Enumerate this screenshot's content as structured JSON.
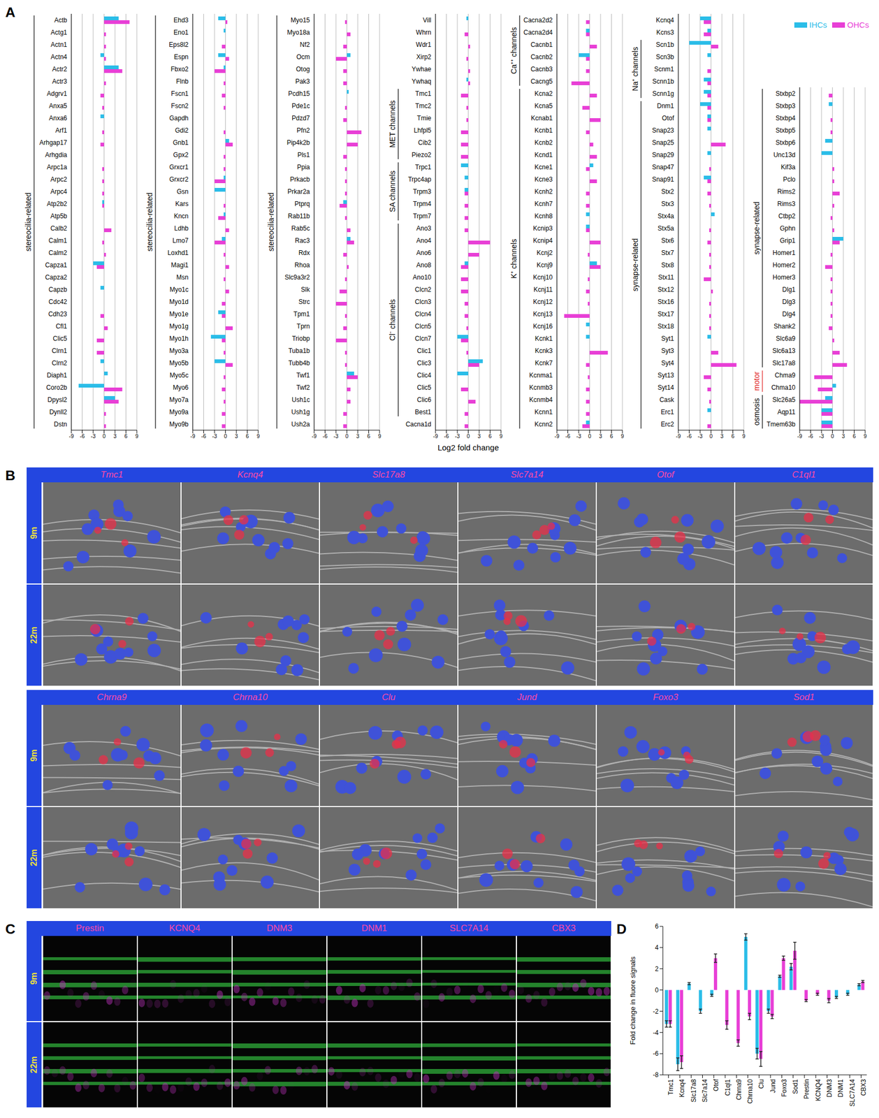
{
  "chart_data": [
    {
      "panel": "A",
      "type": "bar",
      "orientation": "horizontal",
      "xlabel": "Log2 fold change",
      "xlim": [
        -9,
        9
      ],
      "xticks": [
        -9,
        -6,
        -3,
        0,
        3,
        6,
        9
      ],
      "grid": true,
      "legend": "upper right",
      "series": [
        {
          "name": "IHCs",
          "color": "#2bbde8"
        },
        {
          "name": "OHCs",
          "color": "#e83fd6"
        }
      ],
      "columns": [
        {
          "categories": [
            "Actb",
            "Actg1",
            "Actn1",
            "Actn4",
            "Actr2",
            "Actr3",
            "Adgrv1",
            "Anxa5",
            "Anxa6",
            "Arf1",
            "Arhgap17",
            "Arhgdia",
            "Arpc1a",
            "Arpc2",
            "Arpc4",
            "Atp2b2",
            "Atp5b",
            "Calb2",
            "Calm1",
            "Calm2",
            "Capza1",
            "Capza2",
            "Capzb",
            "Cdc42",
            "Cdh23",
            "Cfl1",
            "Clic5",
            "Clrn1",
            "Clrn2",
            "Diaph1",
            "Coro2b",
            "Dpysl2",
            "Dynll2",
            "Dstn"
          ],
          "values": [
            [
              4,
              0,
              0,
              -1,
              4,
              0,
              0,
              0,
              -1,
              0,
              0,
              0,
              0,
              0,
              0,
              -0.5,
              0,
              0,
              0,
              0,
              -3,
              0,
              -1,
              0,
              0,
              0,
              0,
              0,
              -1,
              1,
              -7,
              3,
              0,
              0
            ],
            [
              7,
              0.5,
              0.5,
              0.5,
              5,
              0.5,
              -1,
              -0.5,
              0,
              -0.5,
              -1,
              0,
              -0.5,
              -0.5,
              -0.5,
              -0.5,
              0,
              2,
              -0.5,
              0.5,
              -2,
              0,
              0,
              0,
              -1,
              1,
              -2,
              -2,
              0,
              0,
              5,
              4,
              0.5,
              0.5
            ]
          ],
          "groups": [
            {
              "label": "stereocilia-related",
              "from": "Actb",
              "to": "Dstn"
            }
          ]
        },
        {
          "categories": [
            "Ehd3",
            "Eno1",
            "Eps8l2",
            "Espn",
            "Fbxo2",
            "Flnb",
            "Fscn1",
            "Fscn2",
            "Gapdh",
            "Gdi2",
            "Gnb1",
            "Gpx2",
            "Grxcr1",
            "Grxcr2",
            "Gsn",
            "Kars",
            "Kncn",
            "Ldhb",
            "Lmo7",
            "Loxhd1",
            "Magi1",
            "Msn",
            "Myo1c",
            "Myo1d",
            "Myo1e",
            "Myo1g",
            "Myo1h",
            "Myo3a",
            "Myo5b",
            "Myo5c",
            "Myo6",
            "Myo7a",
            "Myo9a",
            "Myo9b"
          ],
          "values": [
            [
              -2,
              -0.5,
              0,
              -2,
              -0.5,
              0,
              0,
              0,
              0,
              0,
              1,
              0,
              0,
              -0.5,
              -3,
              0,
              -0.5,
              0,
              -1,
              0,
              0,
              0,
              0,
              0,
              -2,
              0,
              -4,
              0,
              -3,
              0,
              0,
              0,
              0,
              0
            ],
            [
              0.5,
              0,
              -1,
              1,
              -3,
              -0.5,
              -1,
              -0.5,
              0,
              -0.5,
              2,
              -0.5,
              -0.5,
              -3,
              0,
              -0.5,
              -2,
              1,
              -3,
              -0.5,
              1,
              -0.5,
              1,
              -1,
              -1,
              2,
              -1,
              -0.5,
              2,
              -0.5,
              -1,
              -0.5,
              -1,
              -1
            ]
          ],
          "groups": [
            {
              "label": "stereocilia-related",
              "from": "Ehd3",
              "to": "Myo9b"
            }
          ]
        },
        {
          "categories": [
            "Myo15",
            "Myo18a",
            "Nf2",
            "Ocm",
            "Otog",
            "Pak3",
            "Pcdh15",
            "Pde1c",
            "Pdzd7",
            "Pfn2",
            "Pip4k2b",
            "Pls1",
            "Ppia",
            "Prkacb",
            "Prkar2a",
            "Ptprq",
            "Rab11b",
            "Rab5c",
            "Rac3",
            "Rdx",
            "Rhoa",
            "Slc9a3r2",
            "Slk",
            "Strc",
            "Tpm1",
            "Tprn",
            "Triobp",
            "Tuba1b",
            "Tubb4b",
            "Twf1",
            "Twf2",
            "Ush1c",
            "Ush1g",
            "Ush2a"
          ],
          "values": [
            [
              0,
              0,
              0,
              1,
              0,
              0,
              0.5,
              0,
              0,
              0,
              0,
              0,
              0,
              0,
              0,
              -1,
              0,
              0,
              1,
              0,
              0,
              0,
              0,
              0,
              0,
              0,
              0,
              0,
              0,
              2,
              0,
              0,
              0,
              0
            ],
            [
              -0.5,
              1,
              -1,
              -3,
              -1,
              -1,
              0,
              -0.5,
              -1,
              4,
              3,
              -1,
              -0.5,
              -0.5,
              -0.5,
              -2,
              -0.5,
              1,
              2,
              -1,
              0.5,
              -0.5,
              -2,
              -3,
              -0.5,
              -1,
              -3,
              -0.5,
              -0.5,
              3,
              1,
              1,
              -1,
              -1
            ]
          ],
          "groups": [
            {
              "label": "stereocilia-related",
              "from": "Myo15",
              "to": "Ush2a"
            }
          ]
        },
        {
          "categories": [
            "Vill",
            "Whrn",
            "Wdr1",
            "Xirp2",
            "Ywhae",
            "Ywhaq",
            "Tmc1",
            "Tmc2",
            "Tmie",
            "Lhfpl5",
            "Cib2",
            "Piezo2",
            "Trpc1",
            "Trpc4ap",
            "Trpm3",
            "Trpm4",
            "Trpm7",
            "Ano3",
            "Ano4",
            "Ano6",
            "Ano8",
            "Ano10",
            "Clcn2",
            "Clcn3",
            "Clcn4",
            "Clcn5",
            "Clcn7",
            "Clic1",
            "Clic3",
            "Clic4",
            "Clic5",
            "Clic6",
            "Best1",
            "Cacna1d"
          ],
          "values": [
            [
              -0.5,
              0,
              0,
              0,
              0,
              -0.5,
              0,
              0,
              0,
              0,
              0,
              0,
              -2,
              -1,
              -1,
              0,
              0,
              0,
              0,
              0,
              -1,
              0,
              0,
              0,
              0,
              0,
              -3,
              0,
              4,
              -3,
              0,
              0,
              0,
              0
            ],
            [
              0,
              -1,
              0.5,
              -0.5,
              0.5,
              0.5,
              -2,
              -0.5,
              -0.5,
              -2,
              -2,
              -2,
              0,
              0,
              -1,
              -1,
              -1,
              -1,
              6,
              3,
              -2,
              -2,
              -2,
              -1,
              -1,
              -0.5,
              -2,
              -0.5,
              3,
              0,
              -2,
              2,
              -1,
              -1
            ]
          ],
          "groups": [
            {
              "label": "MET channels",
              "from": "Tmc1",
              "to": "Piezo2"
            },
            {
              "label": "SA channels",
              "from": "Trpc1",
              "to": "Trpm7"
            },
            {
              "label": "Cl⁻ channels",
              "from": "Ano3",
              "to": "Best1"
            }
          ]
        },
        {
          "categories": [
            "Cacna2d2",
            "Cacna2d4",
            "Cacnb1",
            "Cacnb2",
            "Cacnb3",
            "Cacng5",
            "Kcna2",
            "Kcna5",
            "Kcnab1",
            "Kcnb1",
            "Kcnb2",
            "Kcnd1",
            "Kcne1",
            "Kcne3",
            "Kcnh2",
            "Kcnh7",
            "Kcnh8",
            "Kcnip3",
            "Kcnip4",
            "Kcnj2",
            "Kcnj9",
            "Kcnj10",
            "Kcnj11",
            "Kcnj12",
            "Kcnj13",
            "Kcnj16",
            "Kcnk1",
            "Kcnk3",
            "Kcnk7",
            "Kcnma1",
            "Kcnmb3",
            "Kcnmb4",
            "Kcnn1",
            "Kcnn2"
          ],
          "values": [
            [
              0,
              -1,
              0,
              -3,
              0,
              0,
              0,
              0,
              0,
              0,
              0,
              0,
              1,
              0,
              0,
              0,
              -1,
              -1,
              0,
              0,
              2,
              0,
              0,
              0,
              0,
              -1,
              -1,
              0,
              0,
              0,
              0,
              0,
              0,
              -1
            ],
            [
              -1,
              -1,
              2,
              -1,
              -1,
              -5,
              2,
              -2,
              3,
              -1,
              1,
              2,
              -1,
              2,
              -1,
              -1,
              0,
              -1,
              3,
              -0.5,
              3,
              -0.5,
              -1,
              -0.5,
              -7,
              0,
              0,
              5,
              -1,
              -0.5,
              -1,
              -1,
              -1,
              -2
            ]
          ],
          "groups": [
            {
              "label": "Ca⁺⁺ channels",
              "from": "Cacna2d2",
              "to": "Cacng5"
            },
            {
              "label": "K⁺ channels",
              "from": "Kcna2",
              "to": "Kcnn2"
            }
          ]
        },
        {
          "categories": [
            "Kcnq4",
            "Kcns3",
            "Scn1b",
            "Scn3b",
            "Scnm1",
            "Scnn1b",
            "Scnn1g",
            "Dnm1",
            "Otof",
            "Snap23",
            "Snap25",
            "Snap29",
            "Snap47",
            "Snap91",
            "Stx2",
            "Stx3",
            "Stx4a",
            "Stx5a",
            "Stx6",
            "Stx7",
            "Stx8",
            "Stx11",
            "Stx12",
            "Stx16",
            "Stx17",
            "Stx18",
            "Syt1",
            "Syt3",
            "Syt4",
            "Syt13",
            "Syt14",
            "Cask",
            "Erc1",
            "Erc2"
          ],
          "values": [
            [
              -3,
              -1,
              -6,
              -1,
              0,
              -2,
              -2,
              -3,
              -1,
              -1,
              0,
              -1,
              0,
              -2,
              0,
              0,
              1,
              0,
              0,
              0,
              0,
              0,
              0,
              0,
              0,
              0,
              -1,
              0,
              0,
              0,
              0,
              0,
              -1,
              0
            ],
            [
              -2,
              -2,
              2,
              0,
              -1,
              -1,
              -1,
              -1,
              -1,
              0,
              4,
              0,
              -0.5,
              -1,
              -1,
              -0.5,
              0,
              -0.5,
              -1,
              -0.5,
              -0.5,
              -2,
              0.5,
              -0.5,
              -0.5,
              -0.5,
              0,
              2,
              7,
              -2,
              -1,
              -0.5,
              0,
              -1
            ]
          ],
          "groups": [
            {
              "label": "Na⁺ channels",
              "from": "Scn1b",
              "to": "Scnn1g"
            },
            {
              "label": "synapse-related",
              "from": "Dnm1",
              "to": "Erc2"
            }
          ]
        },
        {
          "categories": [
            "Stxbp2",
            "Stxbp3",
            "Stxbp4",
            "Stxbp5",
            "Stxbp6",
            "Unc13d",
            "Kif3a",
            "Pclo",
            "Rims2",
            "Rims3",
            "Ctbp2",
            "Gphn",
            "Grip1",
            "Homer1",
            "Homer2",
            "Homer3",
            "Dlg1",
            "Dlg3",
            "Dlg4",
            "Shank2",
            "Slc6a9",
            "Slc6a13",
            "Slc17a8",
            "Chma9",
            "Chma10",
            "Slc26a5",
            "Aqp11",
            "Tmem63b"
          ],
          "values": [
            [
              0,
              -1,
              0,
              0,
              -2,
              -3,
              0,
              0,
              0,
              0,
              0,
              0,
              3,
              0,
              0,
              0,
              0,
              0,
              0,
              0,
              0,
              0,
              0,
              0,
              1,
              -2,
              -3,
              -3
            ],
            [
              -1,
              0,
              -0.5,
              -0.5,
              0,
              0,
              0.5,
              0.5,
              2,
              0.5,
              -0.5,
              0.5,
              2,
              -0.5,
              -2,
              -0.5,
              -0.5,
              -0.5,
              -0.5,
              -1,
              0.5,
              2,
              4,
              -5,
              -4,
              -9,
              -3,
              -3
            ]
          ],
          "groups": [
            {
              "label": "synapse-related",
              "from": "Stxbp2",
              "to": "Slc17a8"
            },
            {
              "label": "motor",
              "from": "Chma9",
              "to": "Chma10",
              "color": "#e02020"
            },
            {
              "label": "osmosis",
              "from": "Slc26a5",
              "to": "Tmem63b"
            }
          ]
        }
      ]
    },
    {
      "panel": "D",
      "type": "bar",
      "ylabel": "Fold change in fluore signals",
      "ylim": [
        -8,
        6
      ],
      "yticks": [
        -8,
        -6,
        -4,
        -2,
        0,
        2,
        4,
        6
      ],
      "grid": false,
      "categories": [
        "Tmc1",
        "Kcnq4",
        "Slc17a8",
        "Slc7a14",
        "Otof",
        "C1ql1",
        "Chrna9",
        "Chrna10",
        "Clu",
        "Jund",
        "Foxo3",
        "Sod1",
        "Prestin",
        "KCNQ4",
        "DNM3",
        "DNM1",
        "SLC7A14",
        "CBX3"
      ],
      "series": [
        {
          "color": "#2bbde8",
          "values": [
            -3.2,
            -7,
            0.6,
            -2,
            -0.5,
            null,
            null,
            5,
            -6,
            -2,
            1.3,
            2.2,
            null,
            null,
            null,
            -0.7,
            -0.4,
            0.5
          ],
          "errors": [
            0.3,
            0.6,
            0.1,
            0.2,
            0.1,
            null,
            null,
            0.3,
            0.5,
            0.2,
            0.1,
            0.3,
            null,
            null,
            null,
            0.1,
            0.1,
            0.1
          ]
        },
        {
          "color": "#e83fd6",
          "values": [
            -3.2,
            -6.8,
            null,
            null,
            3,
            -3.3,
            -5,
            -2.5,
            -6.5,
            -2.5,
            3,
            3.7,
            -1,
            -0.4,
            -1,
            null,
            null,
            0.8
          ],
          "errors": [
            0.3,
            0.6,
            null,
            null,
            0.4,
            0.4,
            0.3,
            0.3,
            0.7,
            0.2,
            0.2,
            0.8,
            0.1,
            0.1,
            0.2,
            null,
            null,
            0.1
          ]
        }
      ]
    }
  ],
  "images": {
    "B": {
      "panel": "B",
      "rows": [
        "9m",
        "22m"
      ],
      "blocks": [
        [
          "Tmc1",
          "Kcnq4",
          "Slc17a8",
          "Slc7a14",
          "Otof",
          "C1ql1"
        ],
        [
          "Chrna9",
          "Chrna10",
          "Clu",
          "Jund",
          "Foxo3",
          "Sod1"
        ]
      ]
    },
    "C": {
      "panel": "C",
      "rows": [
        "9m",
        "22m"
      ],
      "labels": [
        "Prestin",
        "KCNQ4",
        "DNM3",
        "DNM1",
        "SLC7A14",
        "CBX3"
      ]
    }
  }
}
